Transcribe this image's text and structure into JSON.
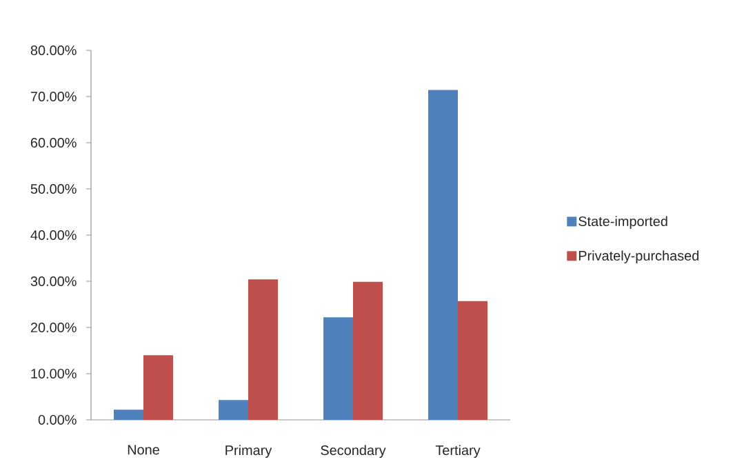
{
  "chart_data": {
    "type": "bar",
    "categories": [
      "None",
      "Primary",
      "Secondary",
      "Tertiary"
    ],
    "series": [
      {
        "name": "State-imported",
        "color": "#4f81bd",
        "values": [
          2.2,
          4.3,
          22.2,
          71.4
        ]
      },
      {
        "name": "Privately-purchased",
        "color": "#c0504d",
        "values": [
          14.0,
          30.4,
          29.9,
          25.7
        ]
      }
    ],
    "ylim": [
      0,
      80
    ],
    "yticks": [
      {
        "value": 0,
        "label": "0.00%"
      },
      {
        "value": 10,
        "label": "10.00%"
      },
      {
        "value": 20,
        "label": "20.00%"
      },
      {
        "value": 30,
        "label": "30.00%"
      },
      {
        "value": 40,
        "label": "40.00%"
      },
      {
        "value": 50,
        "label": "50.00%"
      },
      {
        "value": 60,
        "label": "60.00%"
      },
      {
        "value": 70,
        "label": "70.00%"
      },
      {
        "value": 80,
        "label": "80.00%"
      }
    ],
    "legend": "right"
  }
}
